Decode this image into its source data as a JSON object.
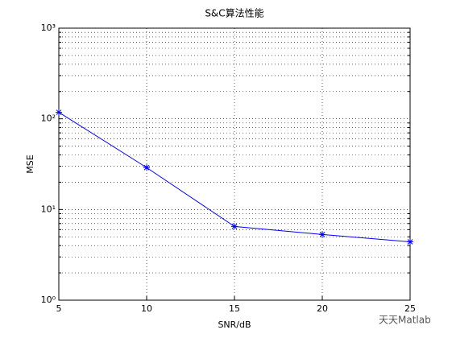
{
  "chart_data": {
    "type": "line",
    "title": "S&C算法性能",
    "x_label": "SNR/dB",
    "y_label": "MSE",
    "x": [
      5,
      10,
      15,
      20,
      25
    ],
    "series": [
      {
        "name": "MSE",
        "color": "#0000ff",
        "values": [
          118,
          29,
          6.5,
          5.3,
          4.4
        ]
      }
    ],
    "xlim": [
      5,
      25
    ],
    "xticks": [
      5,
      10,
      15,
      20,
      25
    ],
    "ylim": [
      1,
      1000
    ],
    "y_scale": "log",
    "yticks": [
      {
        "value": 1,
        "label": "10⁰"
      },
      {
        "value": 10,
        "label": "10¹"
      },
      {
        "value": 100,
        "label": "10²"
      },
      {
        "value": 1000,
        "label": "10³"
      }
    ],
    "grid": true,
    "legend": false
  },
  "watermark": "天天Matlab"
}
